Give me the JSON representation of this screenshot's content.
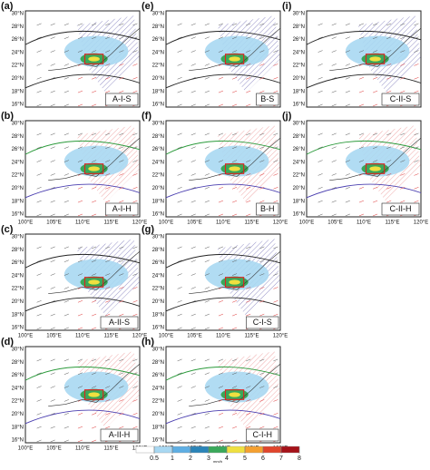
{
  "panels": [
    {
      "letter": "(a)",
      "tag": "A-I-S",
      "lon_labels": false
    },
    {
      "letter": "(b)",
      "tag": "A-I-H",
      "lon_labels": true
    },
    {
      "letter": "(c)",
      "tag": "A-II-S",
      "lon_labels": true
    },
    {
      "letter": "(d)",
      "tag": "A-II-H",
      "lon_labels": true
    },
    {
      "letter": "(e)",
      "tag": "B-S",
      "lon_labels": false
    },
    {
      "letter": "(f)",
      "tag": "B-H",
      "lon_labels": true
    },
    {
      "letter": "(g)",
      "tag": "C-I-S",
      "lon_labels": true
    },
    {
      "letter": "(h)",
      "tag": "C-I-H",
      "lon_labels": true
    },
    {
      "letter": "(i)",
      "tag": "C-II-S",
      "lon_labels": false
    },
    {
      "letter": "(j)",
      "tag": "C-II-H",
      "lon_labels": true
    }
  ],
  "lat_labels": [
    "30°N",
    "28°N",
    "26°N",
    "24°N",
    "22°N",
    "20°N",
    "18°N",
    "16°N"
  ],
  "lon_labels": [
    "100°E",
    "105°E",
    "110°E",
    "115°E",
    "120°E"
  ],
  "colorbar": {
    "ticks": [
      0.5,
      1,
      2,
      3,
      4,
      5,
      6,
      7,
      8
    ],
    "colors": [
      "#ffffff",
      "#a8d8f2",
      "#5eaee3",
      "#2a84b8",
      "#3aa85a",
      "#efe040",
      "#f5a030",
      "#e0452c",
      "#a51219"
    ],
    "unit": "mm/h"
  }
}
